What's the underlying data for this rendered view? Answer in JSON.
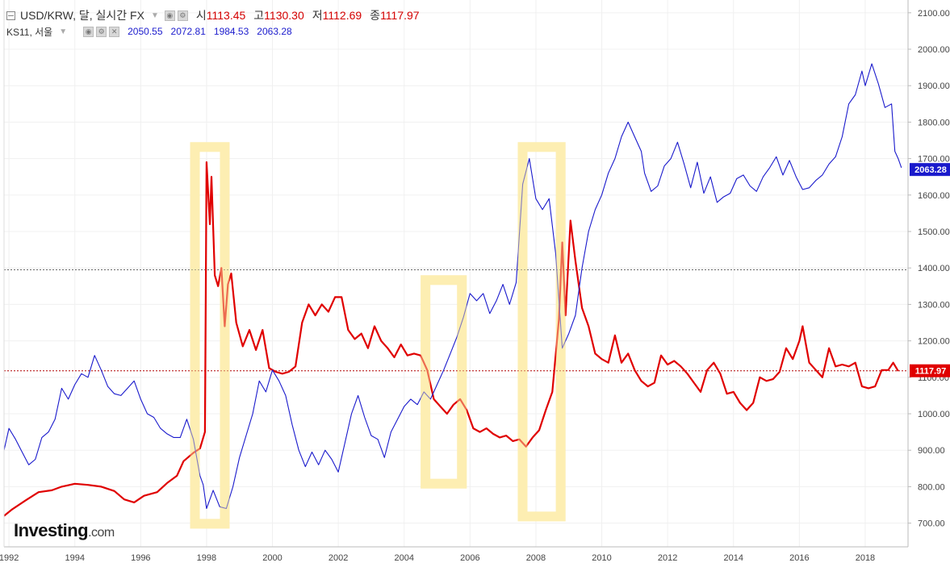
{
  "legend": {
    "main": {
      "label": "USD/KRW, 달, 실시간 FX",
      "open_label": "시",
      "open": "1113.45",
      "high_label": "고",
      "high": "1130.30",
      "low_label": "저",
      "low": "1112.69",
      "close_label": "종",
      "close": "1117.97"
    },
    "secondary": {
      "label": "KS11, 서울",
      "open": "2050.55",
      "high": "2072.81",
      "low": "1984.53",
      "close": "2063.28"
    }
  },
  "logo": {
    "main": "Investing",
    "suffix": ".com"
  },
  "colors": {
    "usdkrw": "#e00000",
    "ks11": "#1a1acc",
    "highlight": "#fdeeb0"
  },
  "icons": {
    "collapse": "minus-square-icon",
    "settings": "gear-icon",
    "close": "close-icon",
    "visibility": "eye-icon"
  },
  "chart_data": {
    "type": "line",
    "x_ticks": [
      "1992",
      "1994",
      "1996",
      "1998",
      "2000",
      "2002",
      "2004",
      "2006",
      "2008",
      "2010",
      "2012",
      "2014",
      "2016",
      "2018"
    ],
    "x_range": [
      1991.85,
      2019.3
    ],
    "y_ticks": [
      "700.00",
      "800.00",
      "900.00",
      "1000.00",
      "1100.00",
      "1200.00",
      "1300.00",
      "1400.00",
      "1500.00",
      "1600.00",
      "1700.00",
      "1800.00",
      "1900.00",
      "2000.00",
      "2100.00"
    ],
    "ylim": [
      635,
      2135
    ],
    "price_labels": [
      {
        "series": "KS11",
        "value": "2063.28",
        "axis_y": 1670
      },
      {
        "series": "USD/KRW",
        "value": "1117.97",
        "axis_y": 1117.97
      }
    ],
    "reference_lines": [
      {
        "series": "KS11",
        "axis_y": 1395
      },
      {
        "series": "USD/KRW",
        "axis_y": 1117.97
      }
    ],
    "highlight_ranges": [
      {
        "x0": 1997.5,
        "x1": 1998.7,
        "y_top": 1745,
        "y_bottom": 685
      },
      {
        "x0": 2004.5,
        "x1": 2005.9,
        "y_top": 1380,
        "y_bottom": 795
      },
      {
        "x0": 2007.45,
        "x1": 2008.9,
        "y_top": 1745,
        "y_bottom": 705
      }
    ],
    "series": [
      {
        "name": "USD/KRW",
        "points": [
          [
            1991.85,
            720
          ],
          [
            1992.1,
            738
          ],
          [
            1992.5,
            762
          ],
          [
            1992.9,
            785
          ],
          [
            1993.3,
            790
          ],
          [
            1993.6,
            800
          ],
          [
            1994.0,
            808
          ],
          [
            1994.4,
            805
          ],
          [
            1994.8,
            800
          ],
          [
            1995.2,
            788
          ],
          [
            1995.5,
            765
          ],
          [
            1995.8,
            757
          ],
          [
            1996.1,
            775
          ],
          [
            1996.5,
            785
          ],
          [
            1996.8,
            810
          ],
          [
            1997.1,
            830
          ],
          [
            1997.3,
            870
          ],
          [
            1997.6,
            893
          ],
          [
            1997.8,
            905
          ],
          [
            1997.95,
            950
          ],
          [
            1998.0,
            1690
          ],
          [
            1998.1,
            1520
          ],
          [
            1998.15,
            1650
          ],
          [
            1998.25,
            1380
          ],
          [
            1998.35,
            1350
          ],
          [
            1998.45,
            1400
          ],
          [
            1998.55,
            1240
          ],
          [
            1998.65,
            1355
          ],
          [
            1998.75,
            1385
          ],
          [
            1998.9,
            1250
          ],
          [
            1999.1,
            1185
          ],
          [
            1999.3,
            1230
          ],
          [
            1999.5,
            1175
          ],
          [
            1999.7,
            1230
          ],
          [
            1999.9,
            1125
          ],
          [
            2000.1,
            1115
          ],
          [
            2000.3,
            1110
          ],
          [
            2000.5,
            1115
          ],
          [
            2000.7,
            1130
          ],
          [
            2000.9,
            1250
          ],
          [
            2001.1,
            1300
          ],
          [
            2001.3,
            1270
          ],
          [
            2001.5,
            1300
          ],
          [
            2001.7,
            1280
          ],
          [
            2001.9,
            1320
          ],
          [
            2002.1,
            1320
          ],
          [
            2002.3,
            1230
          ],
          [
            2002.5,
            1205
          ],
          [
            2002.7,
            1220
          ],
          [
            2002.9,
            1180
          ],
          [
            2003.1,
            1240
          ],
          [
            2003.3,
            1200
          ],
          [
            2003.5,
            1180
          ],
          [
            2003.7,
            1155
          ],
          [
            2003.9,
            1190
          ],
          [
            2004.1,
            1160
          ],
          [
            2004.3,
            1165
          ],
          [
            2004.5,
            1160
          ],
          [
            2004.7,
            1120
          ],
          [
            2004.9,
            1040
          ],
          [
            2005.1,
            1020
          ],
          [
            2005.3,
            1000
          ],
          [
            2005.5,
            1025
          ],
          [
            2005.7,
            1040
          ],
          [
            2005.9,
            1010
          ],
          [
            2006.1,
            960
          ],
          [
            2006.3,
            950
          ],
          [
            2006.5,
            960
          ],
          [
            2006.7,
            945
          ],
          [
            2006.9,
            935
          ],
          [
            2007.1,
            940
          ],
          [
            2007.3,
            925
          ],
          [
            2007.5,
            930
          ],
          [
            2007.7,
            910
          ],
          [
            2007.9,
            935
          ],
          [
            2008.1,
            955
          ],
          [
            2008.3,
            1010
          ],
          [
            2008.5,
            1060
          ],
          [
            2008.7,
            1260
          ],
          [
            2008.8,
            1470
          ],
          [
            2008.9,
            1270
          ],
          [
            2009.05,
            1530
          ],
          [
            2009.2,
            1420
          ],
          [
            2009.4,
            1290
          ],
          [
            2009.6,
            1240
          ],
          [
            2009.8,
            1165
          ],
          [
            2010.0,
            1150
          ],
          [
            2010.2,
            1140
          ],
          [
            2010.4,
            1215
          ],
          [
            2010.6,
            1140
          ],
          [
            2010.8,
            1165
          ],
          [
            2011.0,
            1120
          ],
          [
            2011.2,
            1090
          ],
          [
            2011.4,
            1075
          ],
          [
            2011.6,
            1085
          ],
          [
            2011.8,
            1160
          ],
          [
            2012.0,
            1135
          ],
          [
            2012.2,
            1145
          ],
          [
            2012.4,
            1130
          ],
          [
            2012.6,
            1110
          ],
          [
            2012.8,
            1085
          ],
          [
            2013.0,
            1060
          ],
          [
            2013.2,
            1120
          ],
          [
            2013.4,
            1140
          ],
          [
            2013.6,
            1110
          ],
          [
            2013.8,
            1055
          ],
          [
            2014.0,
            1060
          ],
          [
            2014.2,
            1030
          ],
          [
            2014.4,
            1010
          ],
          [
            2014.6,
            1030
          ],
          [
            2014.8,
            1100
          ],
          [
            2015.0,
            1090
          ],
          [
            2015.2,
            1095
          ],
          [
            2015.4,
            1115
          ],
          [
            2015.6,
            1180
          ],
          [
            2015.8,
            1150
          ],
          [
            2016.0,
            1200
          ],
          [
            2016.1,
            1240
          ],
          [
            2016.3,
            1140
          ],
          [
            2016.5,
            1120
          ],
          [
            2016.7,
            1100
          ],
          [
            2016.9,
            1180
          ],
          [
            2017.1,
            1130
          ],
          [
            2017.3,
            1135
          ],
          [
            2017.5,
            1130
          ],
          [
            2017.7,
            1140
          ],
          [
            2017.9,
            1075
          ],
          [
            2018.1,
            1070
          ],
          [
            2018.3,
            1075
          ],
          [
            2018.5,
            1120
          ],
          [
            2018.7,
            1120
          ],
          [
            2018.85,
            1140
          ],
          [
            2019.0,
            1117
          ]
        ]
      },
      {
        "name": "KS11",
        "points": [
          [
            1991.85,
            900
          ],
          [
            1992.0,
            960
          ],
          [
            1992.2,
            930
          ],
          [
            1992.4,
            895
          ],
          [
            1992.6,
            860
          ],
          [
            1992.8,
            875
          ],
          [
            1993.0,
            935
          ],
          [
            1993.2,
            950
          ],
          [
            1993.4,
            985
          ],
          [
            1993.6,
            1070
          ],
          [
            1993.8,
            1040
          ],
          [
            1994.0,
            1080
          ],
          [
            1994.2,
            1110
          ],
          [
            1994.4,
            1100
          ],
          [
            1994.6,
            1160
          ],
          [
            1994.8,
            1120
          ],
          [
            1995.0,
            1075
          ],
          [
            1995.2,
            1055
          ],
          [
            1995.4,
            1050
          ],
          [
            1995.6,
            1070
          ],
          [
            1995.8,
            1090
          ],
          [
            1996.0,
            1040
          ],
          [
            1996.2,
            1000
          ],
          [
            1996.4,
            990
          ],
          [
            1996.6,
            960
          ],
          [
            1996.8,
            945
          ],
          [
            1997.0,
            935
          ],
          [
            1997.2,
            935
          ],
          [
            1997.4,
            985
          ],
          [
            1997.6,
            930
          ],
          [
            1997.8,
            830
          ],
          [
            1997.9,
            805
          ],
          [
            1998.0,
            740
          ],
          [
            1998.2,
            790
          ],
          [
            1998.4,
            745
          ],
          [
            1998.6,
            740
          ],
          [
            1998.8,
            800
          ],
          [
            1999.0,
            880
          ],
          [
            1999.2,
            940
          ],
          [
            1999.4,
            1000
          ],
          [
            1999.6,
            1090
          ],
          [
            1999.8,
            1060
          ],
          [
            2000.0,
            1120
          ],
          [
            2000.2,
            1090
          ],
          [
            2000.4,
            1050
          ],
          [
            2000.6,
            970
          ],
          [
            2000.8,
            900
          ],
          [
            2001.0,
            855
          ],
          [
            2001.2,
            895
          ],
          [
            2001.4,
            860
          ],
          [
            2001.6,
            900
          ],
          [
            2001.8,
            875
          ],
          [
            2002.0,
            840
          ],
          [
            2002.2,
            920
          ],
          [
            2002.4,
            1000
          ],
          [
            2002.6,
            1050
          ],
          [
            2002.8,
            990
          ],
          [
            2003.0,
            940
          ],
          [
            2003.2,
            930
          ],
          [
            2003.4,
            880
          ],
          [
            2003.6,
            950
          ],
          [
            2003.8,
            985
          ],
          [
            2004.0,
            1020
          ],
          [
            2004.2,
            1040
          ],
          [
            2004.4,
            1025
          ],
          [
            2004.6,
            1060
          ],
          [
            2004.8,
            1040
          ],
          [
            2005.0,
            1080
          ],
          [
            2005.2,
            1120
          ],
          [
            2005.4,
            1165
          ],
          [
            2005.6,
            1210
          ],
          [
            2005.8,
            1265
          ],
          [
            2006.0,
            1330
          ],
          [
            2006.2,
            1310
          ],
          [
            2006.4,
            1330
          ],
          [
            2006.6,
            1275
          ],
          [
            2006.8,
            1310
          ],
          [
            2007.0,
            1355
          ],
          [
            2007.2,
            1300
          ],
          [
            2007.4,
            1360
          ],
          [
            2007.6,
            1630
          ],
          [
            2007.8,
            1700
          ],
          [
            2008.0,
            1590
          ],
          [
            2008.2,
            1560
          ],
          [
            2008.4,
            1590
          ],
          [
            2008.6,
            1440
          ],
          [
            2008.8,
            1180
          ],
          [
            2009.0,
            1220
          ],
          [
            2009.2,
            1270
          ],
          [
            2009.4,
            1400
          ],
          [
            2009.6,
            1500
          ],
          [
            2009.8,
            1560
          ],
          [
            2010.0,
            1600
          ],
          [
            2010.2,
            1660
          ],
          [
            2010.4,
            1700
          ],
          [
            2010.6,
            1760
          ],
          [
            2010.8,
            1800
          ],
          [
            2011.0,
            1760
          ],
          [
            2011.2,
            1720
          ],
          [
            2011.3,
            1660
          ],
          [
            2011.5,
            1610
          ],
          [
            2011.7,
            1625
          ],
          [
            2011.9,
            1680
          ],
          [
            2012.1,
            1700
          ],
          [
            2012.3,
            1745
          ],
          [
            2012.5,
            1685
          ],
          [
            2012.7,
            1620
          ],
          [
            2012.9,
            1690
          ],
          [
            2013.1,
            1605
          ],
          [
            2013.3,
            1650
          ],
          [
            2013.5,
            1580
          ],
          [
            2013.7,
            1595
          ],
          [
            2013.9,
            1605
          ],
          [
            2014.1,
            1645
          ],
          [
            2014.3,
            1655
          ],
          [
            2014.5,
            1625
          ],
          [
            2014.7,
            1610
          ],
          [
            2014.9,
            1650
          ],
          [
            2015.1,
            1675
          ],
          [
            2015.3,
            1705
          ],
          [
            2015.5,
            1655
          ],
          [
            2015.7,
            1695
          ],
          [
            2015.9,
            1650
          ],
          [
            2016.1,
            1615
          ],
          [
            2016.3,
            1620
          ],
          [
            2016.5,
            1640
          ],
          [
            2016.7,
            1655
          ],
          [
            2016.9,
            1685
          ],
          [
            2017.1,
            1705
          ],
          [
            2017.3,
            1760
          ],
          [
            2017.5,
            1850
          ],
          [
            2017.7,
            1875
          ],
          [
            2017.9,
            1940
          ],
          [
            2018.0,
            1900
          ],
          [
            2018.2,
            1960
          ],
          [
            2018.4,
            1905
          ],
          [
            2018.6,
            1840
          ],
          [
            2018.8,
            1850
          ],
          [
            2018.9,
            1720
          ],
          [
            2019.0,
            1700
          ],
          [
            2019.1,
            1675
          ]
        ]
      }
    ]
  }
}
